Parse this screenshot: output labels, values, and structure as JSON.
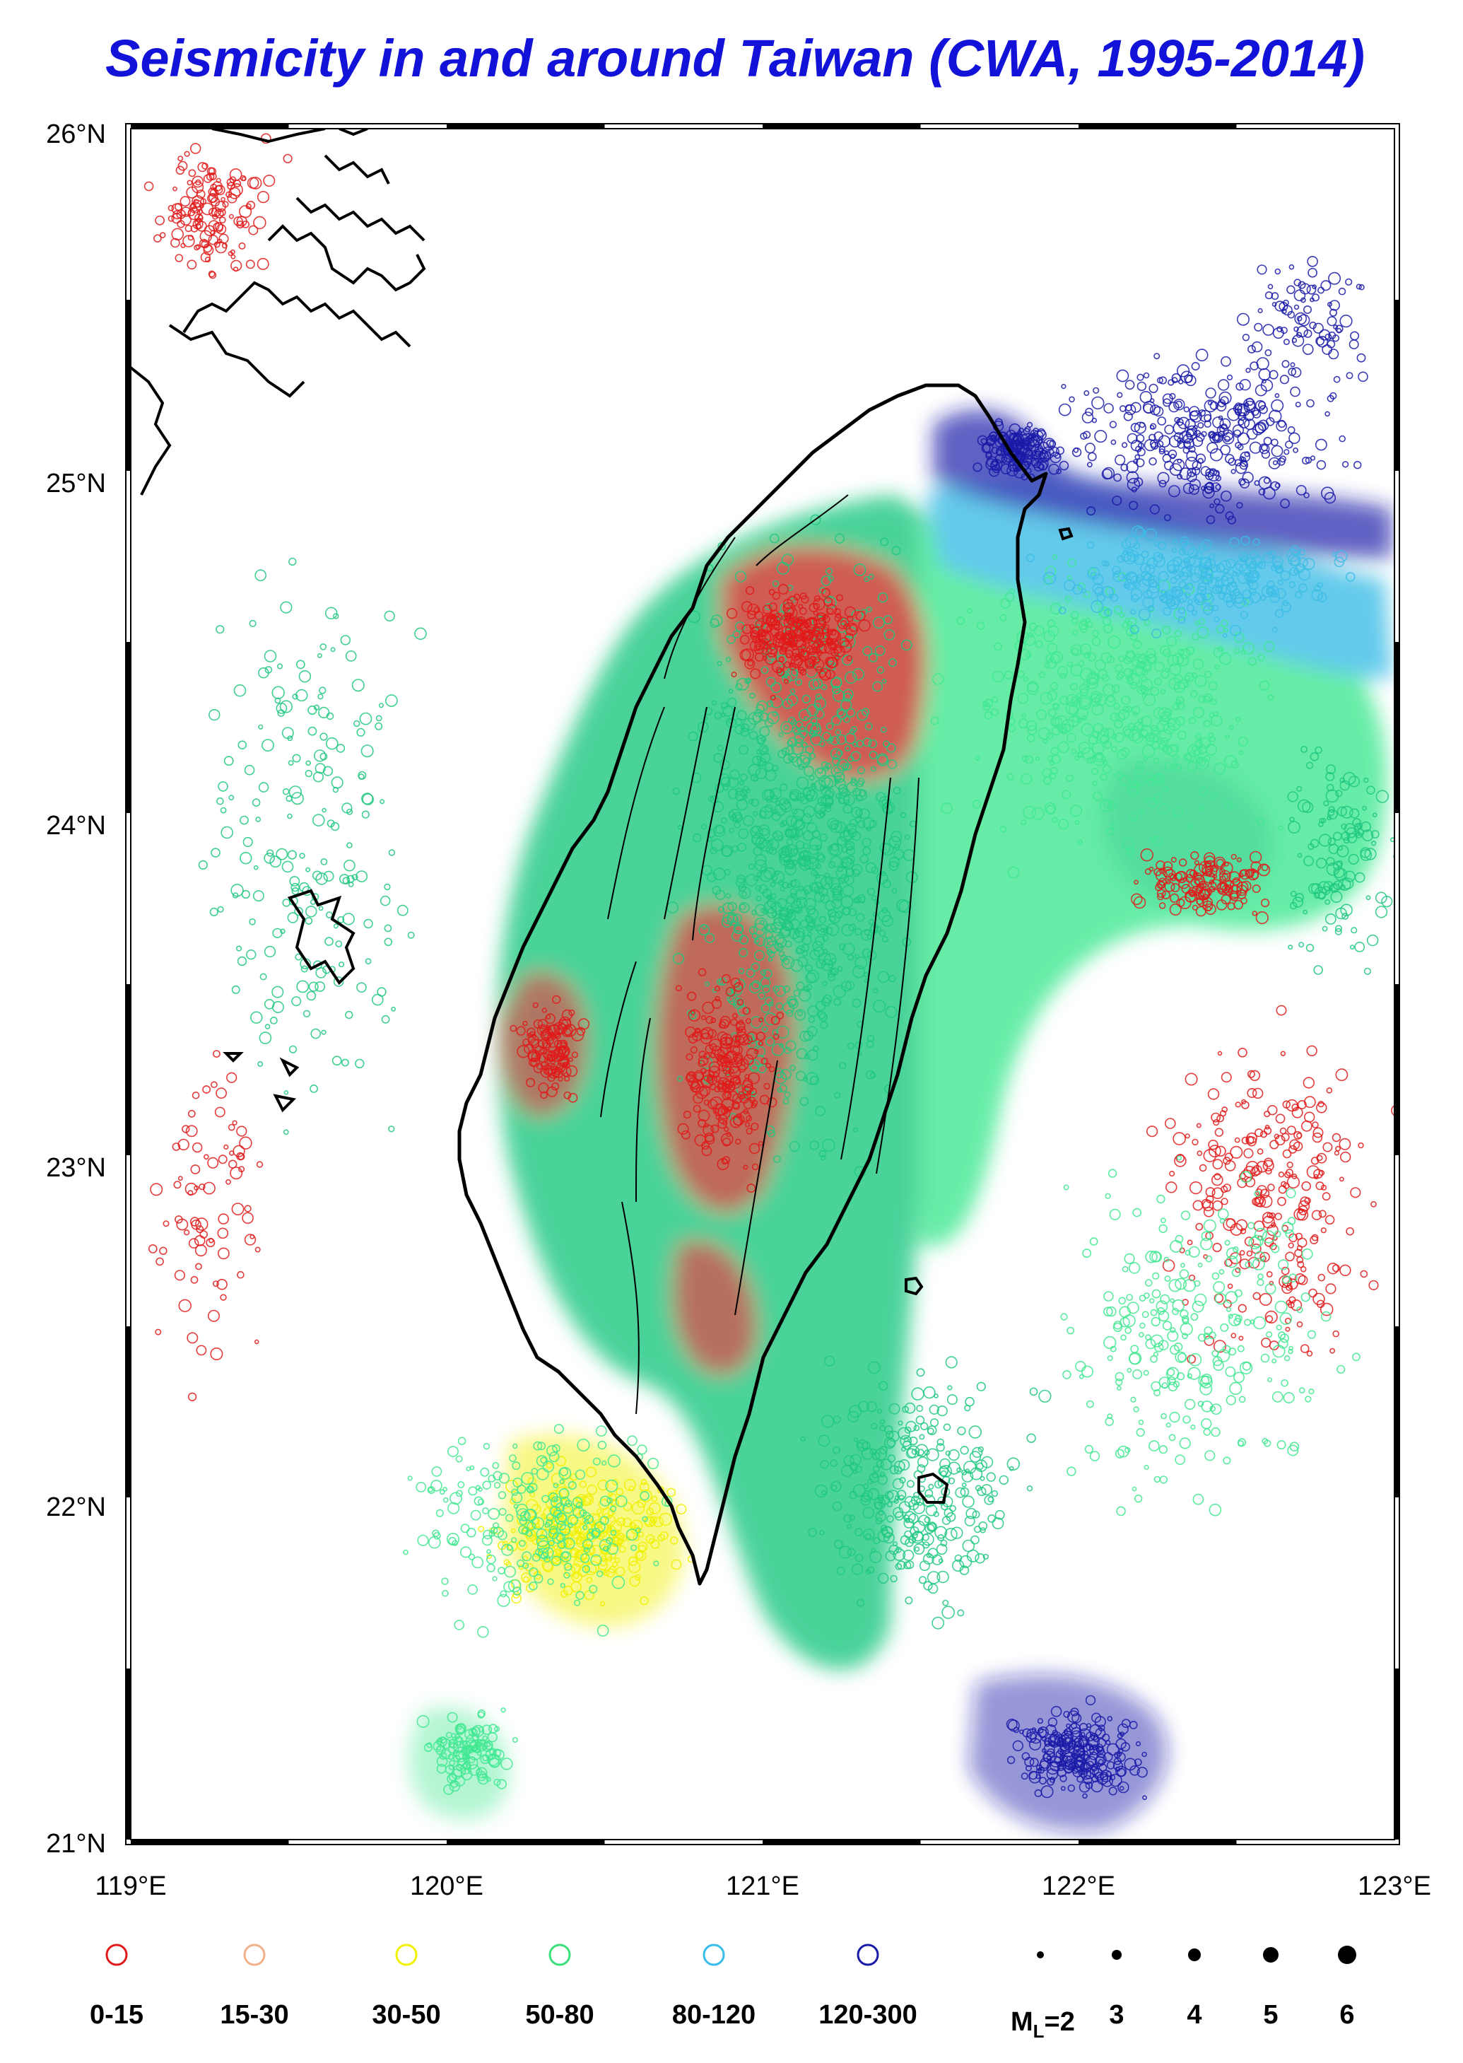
{
  "title": "Seismicity in and around Taiwan (CWA, 1995-2014)",
  "title_color": "#1212d8",
  "lat_labels": [
    "26°N",
    "25°N",
    "24°N",
    "23°N",
    "22°N",
    "21°N"
  ],
  "lon_labels": [
    "119°E",
    "120°E",
    "121°E",
    "122°E",
    "123°E"
  ],
  "depth_legend": [
    {
      "label": "0-15",
      "color": "#e01a1a"
    },
    {
      "label": "15-30",
      "color": "#f2b08a"
    },
    {
      "label": "30-50",
      "color": "#f2f200"
    },
    {
      "label": "50-80",
      "color": "#3ce07a"
    },
    {
      "label": "80-120",
      "color": "#38bde8"
    },
    {
      "label": "120-300",
      "color": "#1a1aa8"
    }
  ],
  "magnitude_legend": {
    "prefix": "M",
    "subscript": "L",
    "first_value": "=2",
    "values": [
      "3",
      "4",
      "5",
      "6"
    ]
  },
  "colors": {
    "land_outline": "#000000",
    "dense_green": "#1ec880",
    "light_green": "#40e890",
    "cyan_zone": "#3cbde6",
    "blue_zone": "#1a1aa8",
    "red_zone": "#e01a1a",
    "yellow_zone": "#f0f000"
  }
}
